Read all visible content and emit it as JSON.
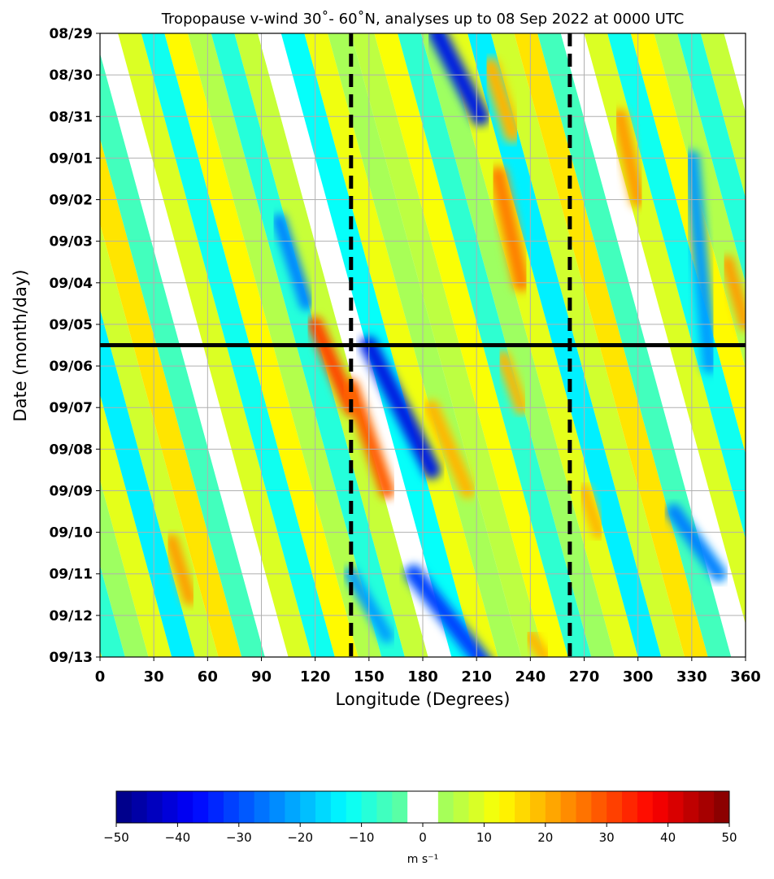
{
  "chart_data": {
    "type": "heatmap",
    "title": "Tropopause v-wind 30˚- 60˚N, analyses up to 08 Sep 2022 at 0000 UTC",
    "xlabel": "Longitude (Degrees)",
    "ylabel": "Date (month/day)",
    "x_ticks": [
      "0",
      "30",
      "60",
      "90",
      "120",
      "150",
      "180",
      "210",
      "240",
      "270",
      "300",
      "330",
      "360"
    ],
    "y_ticks": [
      "08/29",
      "08/30",
      "08/31",
      "09/01",
      "09/02",
      "09/03",
      "09/04",
      "09/05",
      "09/06",
      "09/07",
      "09/08",
      "09/09",
      "09/10",
      "09/11",
      "09/12",
      "09/13"
    ],
    "xlim": [
      0,
      360
    ],
    "ylim_days": [
      0,
      15
    ],
    "analysis_line_day": 7.5,
    "reference_longitudes": [
      140,
      262
    ],
    "grid": true,
    "colorbar": {
      "min": -50,
      "max": 50,
      "step": 2.5,
      "ticks": [
        "−50",
        "−40",
        "−30",
        "−20",
        "−10",
        "0",
        "10",
        "20",
        "30",
        "40",
        "50"
      ],
      "label": "m s⁻¹",
      "white_band": [
        -2.5,
        2.5
      ]
    },
    "features": [
      {
        "lon0": 188,
        "day0": 0.0,
        "lon1": 212,
        "day1": 2.0,
        "value": -42,
        "width": 8
      },
      {
        "lon0": 218,
        "day0": 0.8,
        "lon1": 230,
        "day1": 2.4,
        "value": 22,
        "width": 8
      },
      {
        "lon0": 222,
        "day0": 3.4,
        "lon1": 235,
        "day1": 6.0,
        "value": 28,
        "width": 8
      },
      {
        "lon0": 290,
        "day0": 2.0,
        "lon1": 300,
        "day1": 4.0,
        "value": 25,
        "width": 7
      },
      {
        "lon0": 120,
        "day0": 7.0,
        "lon1": 140,
        "day1": 9.0,
        "value": 35,
        "width": 7
      },
      {
        "lon0": 140,
        "day0": 8.5,
        "lon1": 160,
        "day1": 11.0,
        "value": 32,
        "width": 7
      },
      {
        "lon0": 150,
        "day0": 7.5,
        "lon1": 185,
        "day1": 10.5,
        "value": -42,
        "width": 8
      },
      {
        "lon0": 185,
        "day0": 9.0,
        "lon1": 205,
        "day1": 11.0,
        "value": 22,
        "width": 7
      },
      {
        "lon0": 225,
        "day0": 7.8,
        "lon1": 235,
        "day1": 9.0,
        "value": 22,
        "width": 6
      },
      {
        "lon0": 270,
        "day0": 11.0,
        "lon1": 278,
        "day1": 12.0,
        "value": 22,
        "width": 6
      },
      {
        "lon0": 320,
        "day0": 11.5,
        "lon1": 345,
        "day1": 13.0,
        "value": -28,
        "width": 7
      },
      {
        "lon0": 175,
        "day0": 13.0,
        "lon1": 215,
        "day1": 15.2,
        "value": -35,
        "width": 8
      },
      {
        "lon0": 40,
        "day0": 12.2,
        "lon1": 50,
        "day1": 13.6,
        "value": 25,
        "width": 6
      },
      {
        "lon0": 330,
        "day0": 3.0,
        "lon1": 340,
        "day1": 8.0,
        "value": -25,
        "width": 7
      },
      {
        "lon0": 350,
        "day0": 5.5,
        "lon1": 360,
        "day1": 7.0,
        "value": 25,
        "width": 6
      },
      {
        "lon0": 100,
        "day0": 4.5,
        "lon1": 115,
        "day1": 6.5,
        "value": -28,
        "width": 6
      },
      {
        "lon0": 140,
        "day0": 13.0,
        "lon1": 160,
        "day1": 14.5,
        "value": -25,
        "width": 6
      },
      {
        "lon0": 240,
        "day0": 14.5,
        "lon1": 248,
        "day1": 15.0,
        "value": 22,
        "width": 6
      }
    ]
  }
}
